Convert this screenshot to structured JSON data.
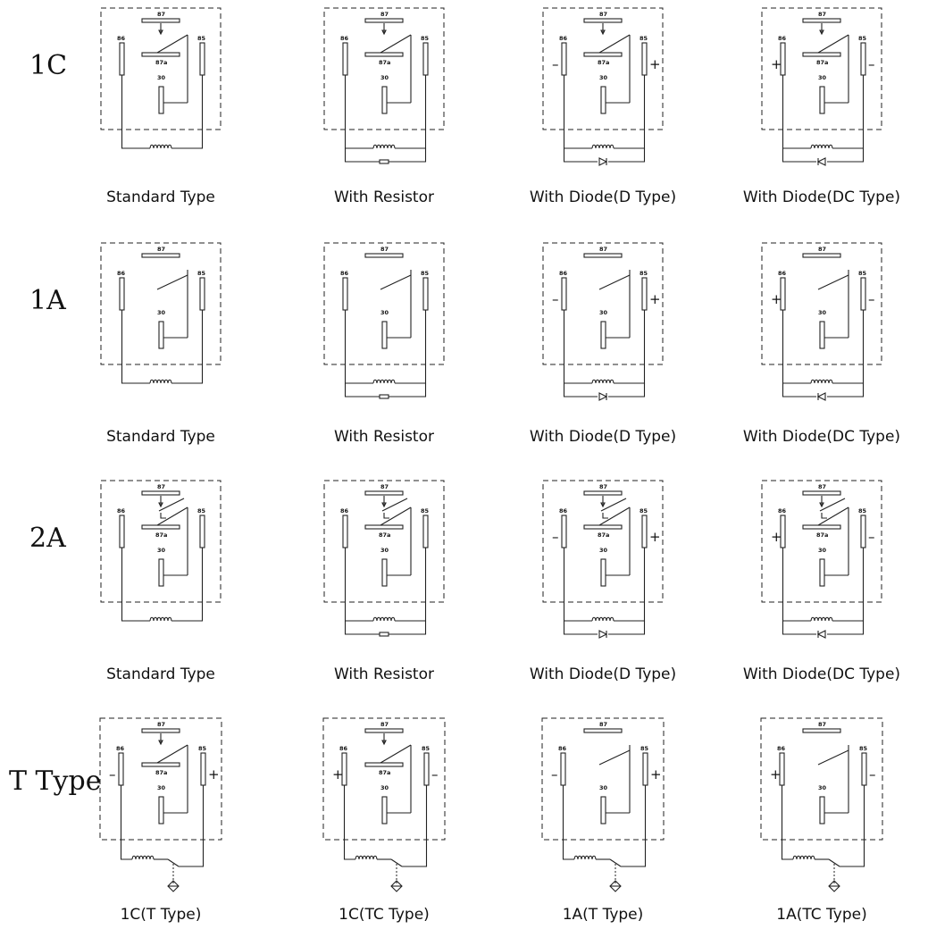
{
  "pin_labels": {
    "p87": "87",
    "p87a": "87a",
    "p30": "30",
    "p86": "86",
    "p85": "85"
  },
  "signs": {
    "plus": "+",
    "minus": "–"
  },
  "rows": [
    {
      "label": "1C",
      "contact": "1C",
      "cells": [
        {
          "caption": "Standard Type",
          "variant": "standard"
        },
        {
          "caption": "With Resistor",
          "variant": "resistor"
        },
        {
          "caption": "With Diode(D Type)",
          "variant": "diode-d"
        },
        {
          "caption": "With Diode(DC Type)",
          "variant": "diode-dc"
        }
      ]
    },
    {
      "label": "1A",
      "contact": "1A",
      "cells": [
        {
          "caption": "Standard Type",
          "variant": "standard"
        },
        {
          "caption": "With Resistor",
          "variant": "resistor"
        },
        {
          "caption": "With Diode(D Type)",
          "variant": "diode-d"
        },
        {
          "caption": "With Diode(DC Type)",
          "variant": "diode-dc"
        }
      ]
    },
    {
      "label": "2A",
      "contact": "2A",
      "cells": [
        {
          "caption": "Standard Type",
          "variant": "standard"
        },
        {
          "caption": "With Resistor",
          "variant": "resistor"
        },
        {
          "caption": "With Diode(D Type)",
          "variant": "diode-d"
        },
        {
          "caption": "With Diode(DC Type)",
          "variant": "diode-dc"
        }
      ]
    },
    {
      "label": "T Type",
      "contact": "T",
      "cells": [
        {
          "caption": "1C(T Type)",
          "variant": "t",
          "base": "1C",
          "polarity": "minus-plus"
        },
        {
          "caption": "1C(TC Type)",
          "variant": "t",
          "base": "1C",
          "polarity": "plus-minus"
        },
        {
          "caption": "1A(T Type)",
          "variant": "t",
          "base": "1A",
          "polarity": "minus-plus"
        },
        {
          "caption": "1A(TC Type)",
          "variant": "t",
          "base": "1A",
          "polarity": "plus-minus"
        }
      ]
    }
  ]
}
